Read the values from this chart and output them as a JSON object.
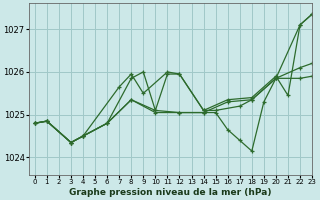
{
  "title": "Graphe pression niveau de la mer (hPa)",
  "bg_color": "#cce8e8",
  "grid_color": "#a0c8c8",
  "line_color": "#2d6b2d",
  "xlim": [
    -0.5,
    23
  ],
  "ylim": [
    1023.6,
    1027.6
  ],
  "yticks": [
    1024,
    1025,
    1026,
    1027
  ],
  "xticks": [
    0,
    1,
    2,
    3,
    4,
    5,
    6,
    7,
    8,
    9,
    10,
    11,
    12,
    13,
    14,
    15,
    16,
    17,
    18,
    19,
    20,
    21,
    22,
    23
  ],
  "series": [
    {
      "x": [
        0,
        1,
        3,
        4,
        6,
        8,
        9,
        10,
        11,
        12,
        14,
        16,
        18,
        20,
        21,
        22,
        23
      ],
      "y": [
        1024.8,
        1024.85,
        1024.35,
        1024.5,
        1024.8,
        1025.85,
        1026.0,
        1025.1,
        1025.95,
        1025.95,
        1025.1,
        1025.35,
        1025.4,
        1025.9,
        1025.45,
        1027.1,
        1027.35
      ]
    },
    {
      "x": [
        0,
        1,
        3,
        4,
        7,
        8,
        9,
        11,
        12,
        14,
        15,
        17,
        18,
        20,
        22,
        23
      ],
      "y": [
        1024.8,
        1024.85,
        1024.35,
        1024.5,
        1025.65,
        1025.95,
        1025.5,
        1026.0,
        1025.95,
        1025.1,
        1025.1,
        1025.2,
        1025.35,
        1025.85,
        1026.1,
        1026.2
      ]
    },
    {
      "x": [
        0,
        1,
        3,
        4,
        6,
        8,
        10,
        12,
        14,
        16,
        18,
        20,
        22,
        23
      ],
      "y": [
        1024.8,
        1024.85,
        1024.35,
        1024.5,
        1024.8,
        1025.35,
        1025.1,
        1025.05,
        1025.05,
        1025.3,
        1025.35,
        1025.85,
        1025.85,
        1025.9
      ]
    },
    {
      "x": [
        0,
        1,
        3,
        4,
        6,
        8,
        10,
        12,
        14,
        15,
        16,
        17,
        18,
        19,
        20,
        22,
        23
      ],
      "y": [
        1024.8,
        1024.85,
        1024.35,
        1024.5,
        1024.8,
        1025.35,
        1025.05,
        1025.05,
        1025.05,
        1025.05,
        1024.65,
        1024.4,
        1024.15,
        1025.3,
        1025.85,
        1027.1,
        1027.35
      ]
    }
  ]
}
